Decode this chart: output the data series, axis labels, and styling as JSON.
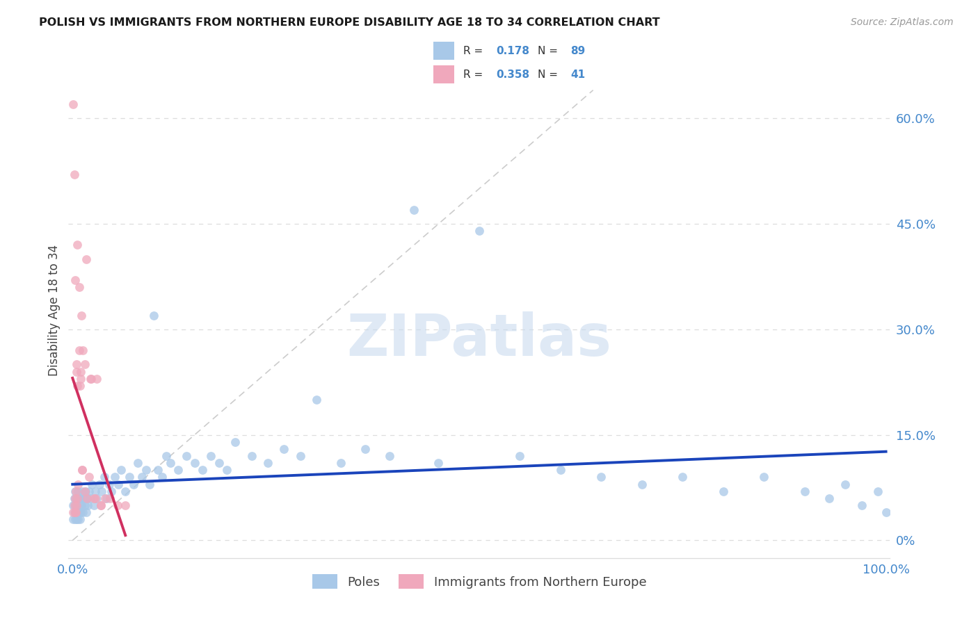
{
  "title": "POLISH VS IMMIGRANTS FROM NORTHERN EUROPE DISABILITY AGE 18 TO 34 CORRELATION CHART",
  "source": "Source: ZipAtlas.com",
  "ylabel": "Disability Age 18 to 34",
  "legend_label_poles": "Poles",
  "legend_label_immig": "Immigrants from Northern Europe",
  "R_poles": 0.178,
  "N_poles": 89,
  "R_immig": 0.358,
  "N_immig": 41,
  "color_poles": "#A8C8E8",
  "color_immig": "#F0A8BC",
  "color_poles_line": "#1A44BB",
  "color_immig_line": "#D03060",
  "color_grid": "#DDDDDD",
  "color_diag": "#CCCCCC",
  "color_tick": "#4488CC",
  "watermark": "ZIPatlas",
  "xlim": [
    -0.005,
    1.005
  ],
  "ylim": [
    -0.025,
    0.68
  ],
  "ytick_vals": [
    0.0,
    0.15,
    0.3,
    0.45,
    0.6
  ],
  "ytick_labels": [
    "0%",
    "15.0%",
    "30.0%",
    "45.0%",
    "60.0%"
  ],
  "poles_x": [
    0.001,
    0.001,
    0.002,
    0.002,
    0.003,
    0.003,
    0.003,
    0.004,
    0.004,
    0.005,
    0.005,
    0.006,
    0.006,
    0.007,
    0.007,
    0.008,
    0.008,
    0.009,
    0.009,
    0.01,
    0.01,
    0.011,
    0.012,
    0.013,
    0.014,
    0.015,
    0.016,
    0.017,
    0.018,
    0.019,
    0.02,
    0.022,
    0.024,
    0.026,
    0.028,
    0.03,
    0.033,
    0.036,
    0.039,
    0.042,
    0.045,
    0.048,
    0.052,
    0.056,
    0.06,
    0.065,
    0.07,
    0.075,
    0.08,
    0.085,
    0.09,
    0.095,
    0.1,
    0.105,
    0.11,
    0.115,
    0.12,
    0.13,
    0.14,
    0.15,
    0.16,
    0.17,
    0.18,
    0.19,
    0.2,
    0.22,
    0.24,
    0.26,
    0.28,
    0.3,
    0.33,
    0.36,
    0.39,
    0.42,
    0.45,
    0.5,
    0.55,
    0.6,
    0.65,
    0.7,
    0.75,
    0.8,
    0.85,
    0.9,
    0.93,
    0.95,
    0.97,
    0.99,
    1.0
  ],
  "poles_y": [
    0.03,
    0.05,
    0.04,
    0.06,
    0.03,
    0.05,
    0.07,
    0.04,
    0.06,
    0.03,
    0.05,
    0.04,
    0.06,
    0.03,
    0.07,
    0.04,
    0.06,
    0.05,
    0.03,
    0.06,
    0.04,
    0.05,
    0.07,
    0.04,
    0.06,
    0.05,
    0.07,
    0.04,
    0.06,
    0.05,
    0.07,
    0.06,
    0.08,
    0.05,
    0.07,
    0.06,
    0.08,
    0.07,
    0.09,
    0.06,
    0.08,
    0.07,
    0.09,
    0.08,
    0.1,
    0.07,
    0.09,
    0.08,
    0.11,
    0.09,
    0.1,
    0.08,
    0.32,
    0.1,
    0.09,
    0.12,
    0.11,
    0.1,
    0.12,
    0.11,
    0.1,
    0.12,
    0.11,
    0.1,
    0.14,
    0.12,
    0.11,
    0.13,
    0.12,
    0.2,
    0.11,
    0.13,
    0.12,
    0.47,
    0.11,
    0.44,
    0.12,
    0.1,
    0.09,
    0.08,
    0.09,
    0.07,
    0.09,
    0.07,
    0.06,
    0.08,
    0.05,
    0.07,
    0.04
  ],
  "immig_x": [
    0.001,
    0.001,
    0.002,
    0.002,
    0.003,
    0.003,
    0.004,
    0.004,
    0.005,
    0.005,
    0.006,
    0.006,
    0.007,
    0.008,
    0.009,
    0.01,
    0.011,
    0.012,
    0.013,
    0.015,
    0.017,
    0.02,
    0.023,
    0.026,
    0.03,
    0.035,
    0.04,
    0.046,
    0.055,
    0.065,
    0.003,
    0.005,
    0.006,
    0.008,
    0.01,
    0.012,
    0.015,
    0.018,
    0.022,
    0.028,
    0.035
  ],
  "immig_y": [
    0.62,
    0.04,
    0.52,
    0.05,
    0.04,
    0.06,
    0.04,
    0.07,
    0.24,
    0.05,
    0.22,
    0.06,
    0.08,
    0.27,
    0.22,
    0.23,
    0.32,
    0.1,
    0.27,
    0.07,
    0.4,
    0.09,
    0.23,
    0.06,
    0.23,
    0.05,
    0.06,
    0.06,
    0.05,
    0.05,
    0.37,
    0.25,
    0.42,
    0.36,
    0.24,
    0.1,
    0.25,
    0.06,
    0.23,
    0.06,
    0.05
  ]
}
